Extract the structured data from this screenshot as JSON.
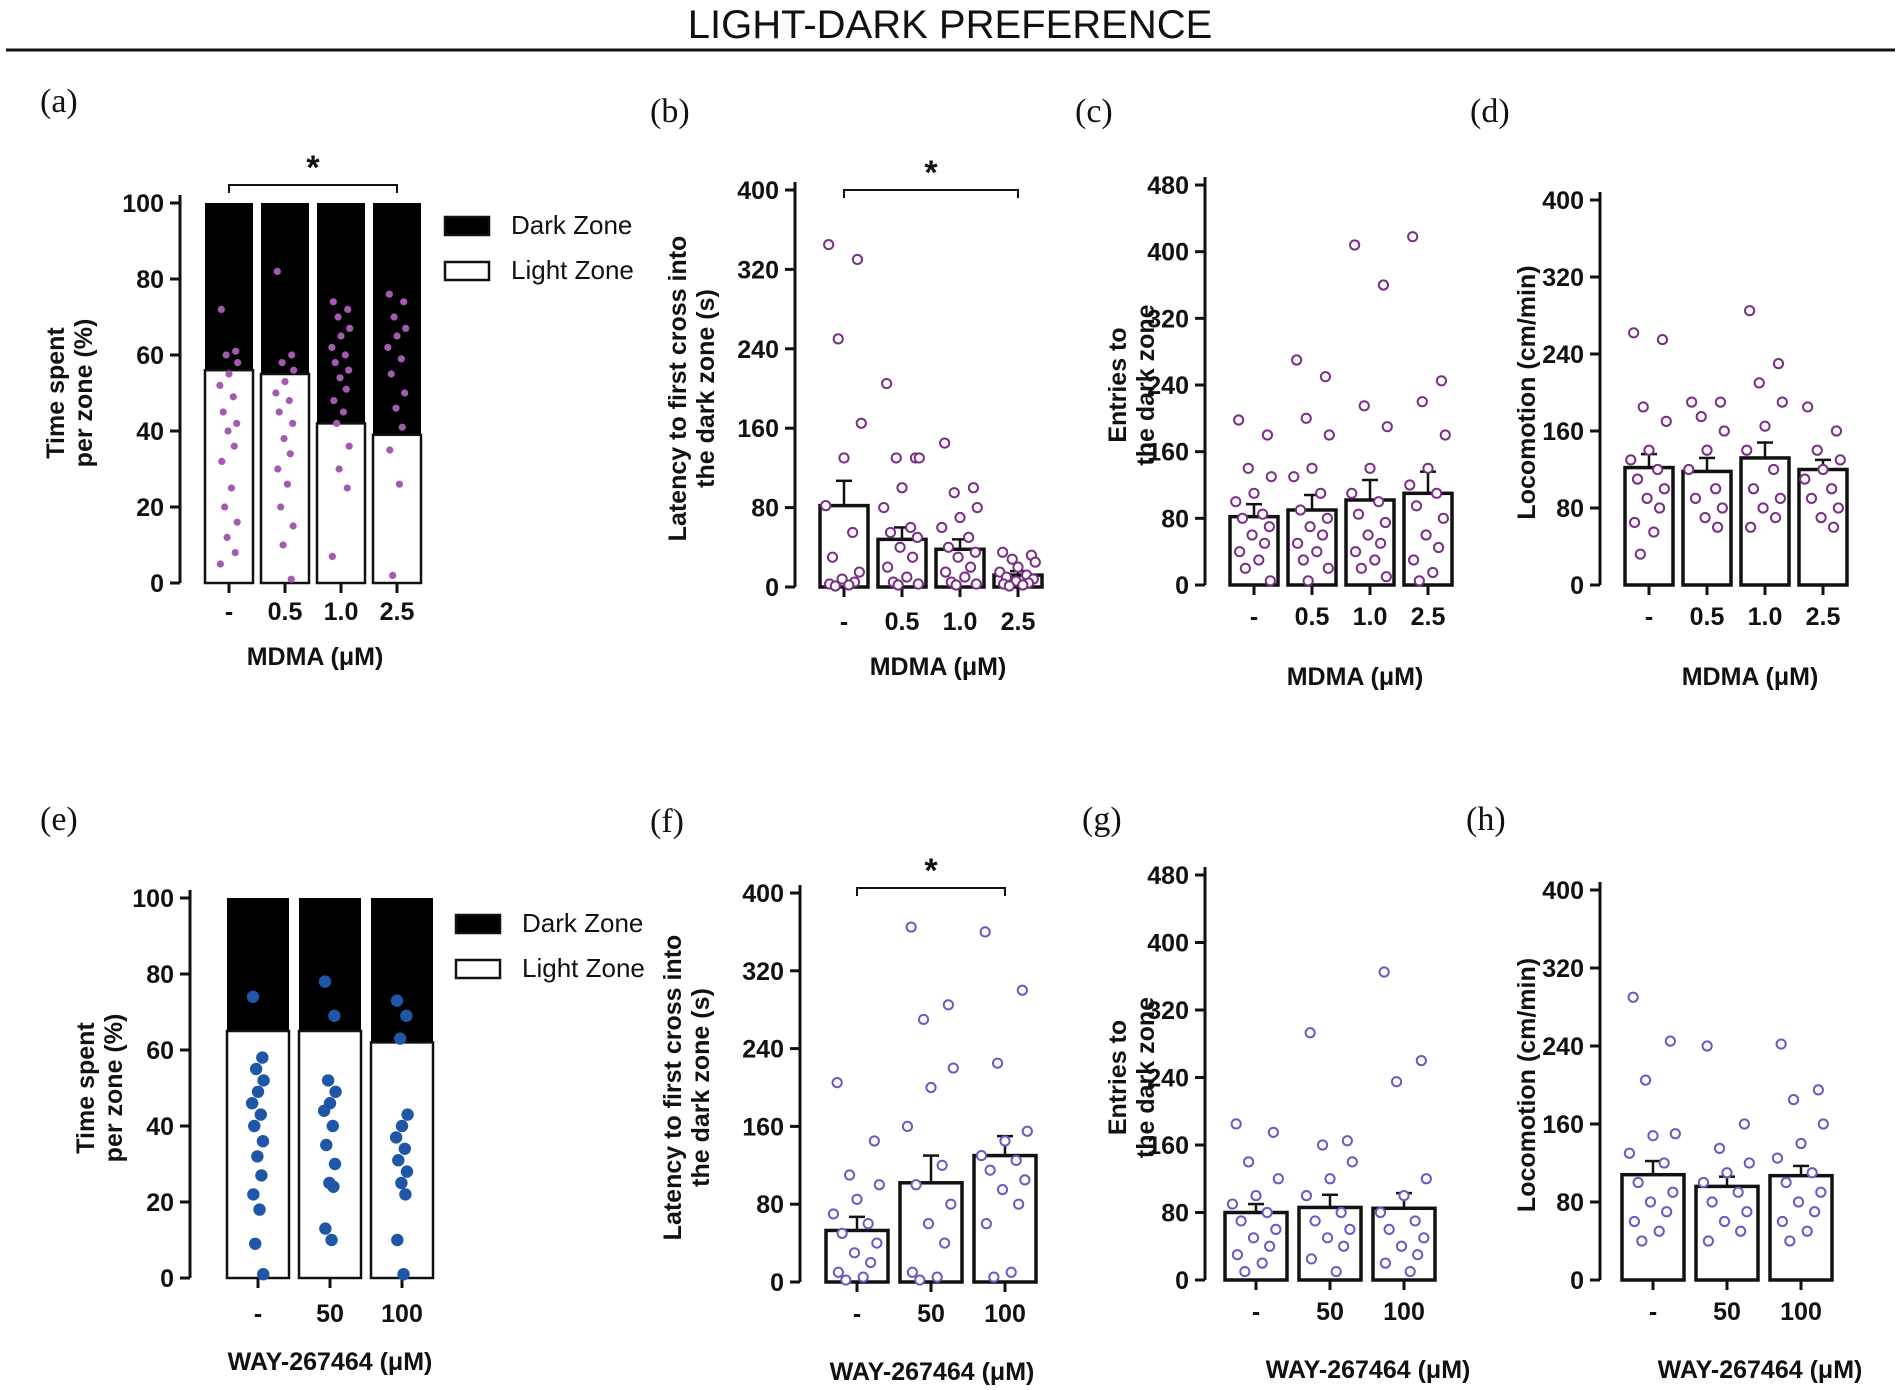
{
  "figure_title": "LIGHT-DARK PREFERENCE",
  "colors": {
    "mdma_points": "#a35bb0",
    "mdma_open": "#7a2f86",
    "way_points": "#1f56a8",
    "way_open": "#6a5bc4"
  },
  "chart_data": [
    {
      "id": "a",
      "panel_label": "(a)",
      "type": "bar",
      "stacked": true,
      "categories": [
        "-",
        "0.5",
        "1.0",
        "2.5"
      ],
      "series": [
        {
          "name": "Light Zone",
          "values": [
            56,
            55,
            42,
            39
          ]
        },
        {
          "name": "Dark Zone",
          "values": [
            44,
            45,
            58,
            61
          ]
        }
      ],
      "points": [
        [
          72,
          61,
          60,
          58,
          55,
          52,
          49,
          45,
          42,
          40,
          36,
          32,
          25,
          20,
          16,
          12,
          8,
          5
        ],
        [
          82,
          60,
          58,
          56,
          53,
          50,
          48,
          45,
          42,
          38,
          34,
          30,
          26,
          20,
          15,
          10,
          1
        ],
        [
          74,
          72,
          70,
          67,
          65,
          62,
          60,
          58,
          56,
          54,
          51,
          48,
          45,
          42,
          36,
          30,
          25,
          7
        ],
        [
          76,
          74,
          70,
          67,
          65,
          62,
          59,
          55,
          50,
          46,
          41,
          35,
          26,
          2
        ]
      ],
      "point_style": "filled-small",
      "ylabel": "Time spent\nper zone (%)",
      "xlabel": "MDMA (μM)",
      "ylim": [
        0,
        100
      ],
      "yticks": [
        "0",
        "20",
        "40",
        "60",
        "80",
        "100"
      ],
      "legend": [
        "Dark Zone",
        "Light Zone"
      ],
      "legend_position": "right",
      "significance": {
        "from": 0,
        "to": 3,
        "label": "*"
      }
    },
    {
      "id": "b",
      "panel_label": "(b)",
      "type": "bar",
      "categories": [
        "-",
        "0.5",
        "1.0",
        "2.5"
      ],
      "values": [
        82,
        48,
        38,
        12
      ],
      "errors": [
        25,
        12,
        10,
        4
      ],
      "points": [
        [
          345,
          330,
          250,
          165,
          130,
          82,
          55,
          30,
          15,
          8,
          5,
          3,
          2,
          1
        ],
        [
          205,
          130,
          130,
          130,
          100,
          80,
          60,
          55,
          50,
          40,
          30,
          20,
          10,
          5,
          3,
          2
        ],
        [
          145,
          100,
          95,
          80,
          70,
          60,
          50,
          40,
          35,
          30,
          20,
          15,
          10,
          5,
          3,
          2
        ],
        [
          35,
          32,
          28,
          25,
          20,
          15,
          12,
          10,
          8,
          6,
          4,
          3,
          2,
          1
        ]
      ],
      "point_style": "open",
      "ylabel": "Latency to first cross into\nthe dark zone (s)",
      "xlabel": "MDMA (μM)",
      "ylim": [
        0,
        400
      ],
      "yticks": [
        "0",
        "80",
        "160",
        "240",
        "320",
        "400"
      ],
      "significance": {
        "from": 0,
        "to": 3,
        "label": "*"
      }
    },
    {
      "id": "c",
      "panel_label": "(c)",
      "type": "bar",
      "categories": [
        "-",
        "0.5",
        "1.0",
        "2.5"
      ],
      "values": [
        82,
        90,
        102,
        110
      ],
      "errors": [
        15,
        18,
        24,
        26
      ],
      "points": [
        [
          198,
          180,
          140,
          130,
          110,
          100,
          85,
          80,
          70,
          60,
          50,
          40,
          30,
          20,
          5
        ],
        [
          270,
          250,
          200,
          180,
          140,
          130,
          110,
          90,
          80,
          70,
          60,
          50,
          40,
          30,
          20,
          5
        ],
        [
          408,
          360,
          215,
          190,
          140,
          110,
          100,
          85,
          75,
          60,
          50,
          40,
          30,
          20,
          10
        ],
        [
          418,
          245,
          220,
          180,
          140,
          120,
          110,
          95,
          80,
          60,
          45,
          30,
          15,
          5
        ]
      ],
      "point_style": "open",
      "ylabel": "Entries to\nthe dark zone",
      "xlabel": "MDMA (μM)",
      "ylim": [
        0,
        480
      ],
      "yticks": [
        "0",
        "80",
        "160",
        "240",
        "320",
        "400",
        "480"
      ]
    },
    {
      "id": "d",
      "panel_label": "(d)",
      "type": "bar",
      "categories": [
        "-",
        "0.5",
        "1.0",
        "2.5"
      ],
      "values": [
        122,
        118,
        132,
        120
      ],
      "errors": [
        14,
        14,
        16,
        10
      ],
      "points": [
        [
          262,
          255,
          185,
          170,
          140,
          130,
          120,
          110,
          100,
          90,
          80,
          65,
          55,
          32
        ],
        [
          190,
          190,
          175,
          160,
          140,
          120,
          100,
          90,
          80,
          70,
          60
        ],
        [
          285,
          230,
          210,
          190,
          165,
          140,
          120,
          100,
          90,
          80,
          70,
          60
        ],
        [
          185,
          160,
          140,
          130,
          120,
          110,
          100,
          90,
          80,
          70,
          60
        ]
      ],
      "point_style": "open",
      "ylabel": "Locomotion (cm/min)",
      "xlabel": "MDMA (μM)",
      "ylim": [
        0,
        400
      ],
      "yticks": [
        "0",
        "80",
        "160",
        "240",
        "320",
        "400"
      ]
    },
    {
      "id": "e",
      "panel_label": "(e)",
      "type": "bar",
      "stacked": true,
      "categories": [
        "-",
        "50",
        "100"
      ],
      "series": [
        {
          "name": "Light Zone",
          "values": [
            65,
            65,
            62
          ]
        },
        {
          "name": "Dark Zone",
          "values": [
            35,
            35,
            38
          ]
        }
      ],
      "points": [
        [
          74,
          58,
          55,
          52,
          49,
          46,
          43,
          40,
          36,
          32,
          27,
          22,
          18,
          9,
          1
        ],
        [
          78,
          69,
          52,
          49,
          46,
          44,
          40,
          35,
          30,
          25,
          24,
          13,
          10
        ],
        [
          73,
          69,
          63,
          43,
          40,
          37,
          34,
          31,
          28,
          25,
          22,
          10,
          1
        ]
      ],
      "point_style": "filled-large",
      "ylabel": "Time spent\nper zone (%)",
      "xlabel": "WAY-267464 (μM)",
      "ylim": [
        0,
        100
      ],
      "yticks": [
        "0",
        "20",
        "40",
        "60",
        "80",
        "100"
      ],
      "legend": [
        "Dark Zone",
        "Light Zone"
      ],
      "legend_position": "right"
    },
    {
      "id": "f",
      "panel_label": "(f)",
      "type": "bar",
      "categories": [
        "-",
        "50",
        "100"
      ],
      "values": [
        53,
        102,
        130
      ],
      "errors": [
        14,
        28,
        20
      ],
      "points": [
        [
          205,
          145,
          110,
          100,
          85,
          70,
          60,
          50,
          40,
          30,
          20,
          10,
          5,
          2
        ],
        [
          365,
          285,
          270,
          220,
          200,
          160,
          120,
          100,
          80,
          60,
          40,
          10,
          5,
          2
        ],
        [
          360,
          300,
          225,
          155,
          145,
          130,
          125,
          115,
          105,
          95,
          80,
          60,
          10,
          5
        ]
      ],
      "point_style": "open",
      "ylabel": "Latency to first cross into\nthe dark zone (s)",
      "xlabel": "WAY-267464 (μM)",
      "ylim": [
        0,
        400
      ],
      "yticks": [
        "0",
        "80",
        "160",
        "240",
        "320",
        "400"
      ],
      "significance": {
        "from": 0,
        "to": 2,
        "label": "*"
      }
    },
    {
      "id": "g",
      "panel_label": "(g)",
      "type": "bar",
      "categories": [
        "-",
        "50",
        "100"
      ],
      "values": [
        80,
        86,
        85
      ],
      "errors": [
        10,
        15,
        18
      ],
      "points": [
        [
          185,
          175,
          140,
          120,
          100,
          90,
          80,
          70,
          60,
          50,
          40,
          30,
          20,
          10
        ],
        [
          293,
          165,
          160,
          140,
          120,
          100,
          80,
          70,
          60,
          50,
          40,
          25,
          10
        ],
        [
          365,
          260,
          235,
          120,
          100,
          80,
          70,
          60,
          50,
          40,
          30,
          20,
          10
        ]
      ],
      "point_style": "open",
      "ylabel": "Entries to\nthe dark zone",
      "xlabel": "WAY-267464 (μM)",
      "ylim": [
        0,
        480
      ],
      "yticks": [
        "0",
        "80",
        "160",
        "240",
        "320",
        "400",
        "480"
      ]
    },
    {
      "id": "h",
      "panel_label": "(h)",
      "type": "bar",
      "categories": [
        "-",
        "50",
        "100"
      ],
      "values": [
        108,
        96,
        107
      ],
      "errors": [
        14,
        10,
        10
      ],
      "points": [
        [
          290,
          245,
          205,
          150,
          148,
          130,
          120,
          100,
          90,
          80,
          70,
          60,
          50,
          40
        ],
        [
          240,
          160,
          135,
          120,
          110,
          100,
          90,
          80,
          70,
          60,
          50,
          40
        ],
        [
          242,
          195,
          185,
          160,
          140,
          125,
          110,
          100,
          90,
          80,
          70,
          60,
          50,
          40
        ]
      ],
      "point_style": "open",
      "ylabel": "Locomotion (cm/min)",
      "xlabel": "WAY-267464 (μM)",
      "ylim": [
        0,
        400
      ],
      "yticks": [
        "0",
        "80",
        "160",
        "240",
        "320",
        "400"
      ]
    }
  ]
}
